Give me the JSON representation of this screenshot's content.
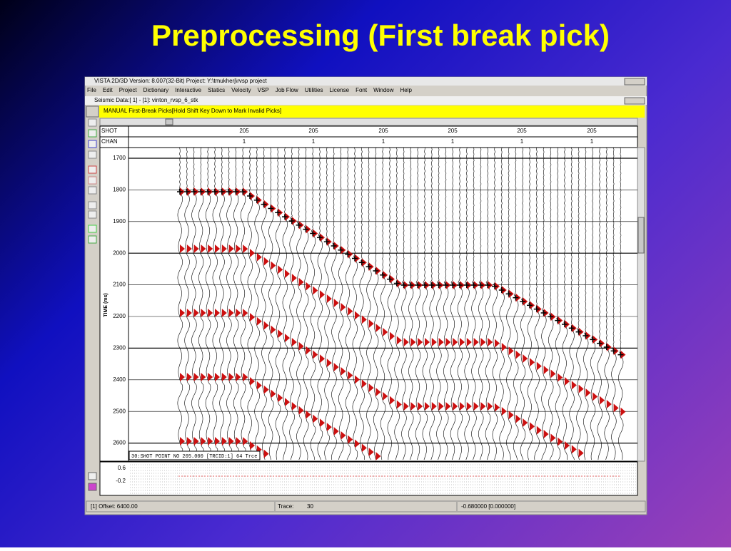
{
  "slide_title": "Preprocessing (First break pick)",
  "window": {
    "title": "VISTA 2D/3D Version: 8.007(32-Bit) Project: Y:\\tmukherj\\rvsp project",
    "menu": [
      "File",
      "Edit",
      "Project",
      "Dictionary",
      "Interactive",
      "Statics",
      "Velocity",
      "VSP",
      "Job Flow",
      "Utilities",
      "License",
      "Font",
      "Window",
      "Help"
    ]
  },
  "subwindow": {
    "title": "Seismic Data:[  1] - [1]: vinton_rvsp_6_stk"
  },
  "banner": "MANUAL First-Break Picks[Hold Shift Key Down to Mark Invalid Picks]",
  "header": {
    "shot_label": "SHOT",
    "shot_values": [
      "205",
      "205",
      "205",
      "205",
      "205",
      "205"
    ],
    "chan_label": "CHAN",
    "chan_values": [
      "1",
      "1",
      "1",
      "1",
      "1",
      "1"
    ]
  },
  "time_axis": {
    "label": "TIME (ms)",
    "ticks": [
      "1700",
      "1800",
      "1900",
      "2000",
      "2100",
      "2200",
      "2300",
      "2400",
      "2500",
      "2600"
    ]
  },
  "info_box": "30:SHOT POINT NO 205.000 [TRCID:1] 64 Trce",
  "lower_panel": {
    "ticks": [
      "0.6",
      "-0.2"
    ]
  },
  "status": {
    "offset": "[1] Offset:  6400.00",
    "trace_label": "Trace:",
    "trace_value": "30",
    "value": "-0.680000 [0.000000]"
  }
}
